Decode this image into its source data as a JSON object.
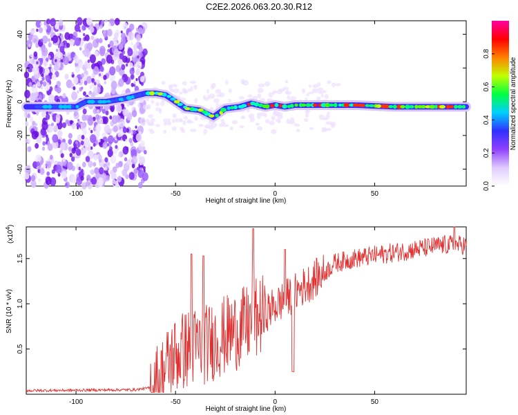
{
  "title": "C2E2.2026.063.20.30.R12",
  "chart_data": [
    {
      "type": "heatmap",
      "name": "spectrogram",
      "xlabel": "Height of straight line (km)",
      "ylabel": "Frequency (Hz)",
      "xlim": [
        -125,
        96
      ],
      "ylim": [
        -50,
        48
      ],
      "xticks": [
        -100,
        -50,
        0,
        50
      ],
      "yticks": [
        -40,
        -20,
        0,
        20,
        40
      ],
      "noise_region_x": [
        -125,
        -65
      ],
      "ridge": [
        {
          "x": -125,
          "y": -3
        },
        {
          "x": -100,
          "y": -3
        },
        {
          "x": -95,
          "y": 0
        },
        {
          "x": -85,
          "y": 0
        },
        {
          "x": -75,
          "y": 2
        },
        {
          "x": -65,
          "y": 5
        },
        {
          "x": -60,
          "y": 5
        },
        {
          "x": -55,
          "y": 4
        },
        {
          "x": -50,
          "y": 0
        },
        {
          "x": -45,
          "y": -4
        },
        {
          "x": -38,
          "y": -5
        },
        {
          "x": -31,
          "y": -9
        },
        {
          "x": -25,
          "y": -4
        },
        {
          "x": -18,
          "y": -3
        },
        {
          "x": -12,
          "y": -1
        },
        {
          "x": -5,
          "y": -3
        },
        {
          "x": 0,
          "y": -2
        },
        {
          "x": 5,
          "y": -3
        },
        {
          "x": 10,
          "y": -2
        },
        {
          "x": 20,
          "y": -2
        },
        {
          "x": 40,
          "y": -2
        },
        {
          "x": 60,
          "y": -3
        },
        {
          "x": 80,
          "y": -3
        },
        {
          "x": 96,
          "y": -3
        }
      ],
      "colorbar": {
        "label": "Normalized spectral amplitude",
        "range": [
          0,
          1
        ],
        "ticks": [
          "0.0",
          "0.2",
          "0.4",
          "0.6",
          "0.8"
        ],
        "tick_values": [
          0,
          0.2,
          0.4,
          0.6,
          0.8
        ],
        "colors": [
          "#ffffff",
          "#e0ccff",
          "#9040ff",
          "#3030ff",
          "#00d0ff",
          "#00ff40",
          "#c0ff00",
          "#ff8000",
          "#ff0000",
          "#ff00a0"
        ]
      }
    },
    {
      "type": "line",
      "name": "snr",
      "xlabel": "Height of straight line (km)",
      "ylabel": "SNR (10 * v/v)",
      "scale_label": "(x10",
      "scale_exp": "4",
      "xlim": [
        -125,
        96
      ],
      "ylim": [
        0,
        18500
      ],
      "xticks": [
        -100,
        -50,
        0,
        50
      ],
      "yticks": [
        0.5,
        1.0,
        1.5
      ],
      "ytick_labels": [
        "0.5",
        "1.0",
        "1.5"
      ],
      "color": "#e03030",
      "baseline": 400,
      "series": [
        {
          "x": -125,
          "y": 400
        },
        {
          "x": -70,
          "y": 500
        },
        {
          "x": -63,
          "y": 700
        },
        {
          "x": -58,
          "y": 1500
        },
        {
          "x": -52,
          "y": 4000
        },
        {
          "x": -45,
          "y": 5000
        },
        {
          "x": -35,
          "y": 5500
        },
        {
          "x": -25,
          "y": 6500
        },
        {
          "x": -15,
          "y": 7500
        },
        {
          "x": -5,
          "y": 9000
        },
        {
          "x": 5,
          "y": 10500
        },
        {
          "x": 15,
          "y": 12000
        },
        {
          "x": 25,
          "y": 13500
        },
        {
          "x": 30,
          "y": 14500
        },
        {
          "x": 40,
          "y": 15000
        },
        {
          "x": 55,
          "y": 15500
        },
        {
          "x": 70,
          "y": 16000
        },
        {
          "x": 85,
          "y": 16500
        },
        {
          "x": 96,
          "y": 16500
        }
      ],
      "spikes": [
        {
          "x": -42,
          "y": 15500
        },
        {
          "x": -36,
          "y": 15300
        },
        {
          "x": -11,
          "y": 18300
        },
        {
          "x": 5,
          "y": 16000
        },
        {
          "x": 90,
          "y": 18500
        }
      ],
      "dips": [
        {
          "x": 9,
          "y": 2500
        }
      ]
    }
  ]
}
